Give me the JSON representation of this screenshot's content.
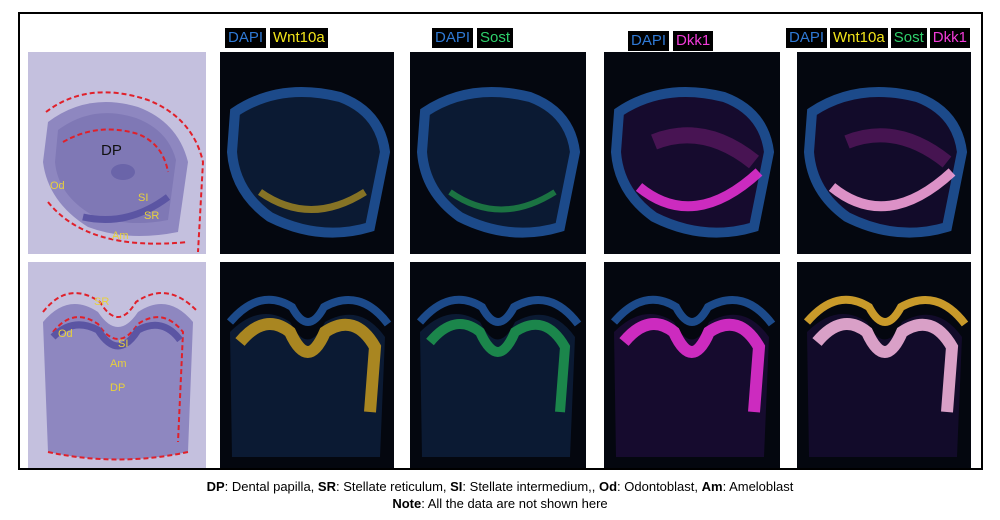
{
  "channel_labels": {
    "wnt10a": [
      "DAPI",
      "Wnt10a"
    ],
    "sost": [
      "DAPI",
      "Sost"
    ],
    "dkk1": [
      "DAPI",
      "Dkk1"
    ],
    "merge": [
      "DAPI",
      "Wnt10a",
      "Sost",
      "Dkk1"
    ]
  },
  "colors": {
    "dapi": "#2f79d4",
    "wnt10a": "#f2e41a",
    "sost": "#2fd06b",
    "dkk1": "#f23bd8",
    "he_tissue": "#b9b4d6",
    "dashed_outline": "#e0202a"
  },
  "he_labels": {
    "top": {
      "dp": "DP",
      "od": "Od",
      "si": "SI",
      "sr": "SR",
      "am": "Am"
    },
    "bottom": {
      "sr": "SR",
      "od": "Od",
      "si": "SI",
      "am": "Am",
      "dp": "DP"
    }
  },
  "legend": {
    "items": [
      {
        "abbr": "DP",
        "text": ": Dental papilla, "
      },
      {
        "abbr": "SR",
        "text": ": Stellate reticulum, "
      },
      {
        "abbr": "SI",
        "text": ": Stellate intermedium,,  "
      },
      {
        "abbr": "Od",
        "text": ": Odontoblast, "
      },
      {
        "abbr": "Am",
        "text": ": Ameloblast"
      }
    ],
    "note_label": "Note",
    "note_text": ": All the data are not shown here"
  }
}
